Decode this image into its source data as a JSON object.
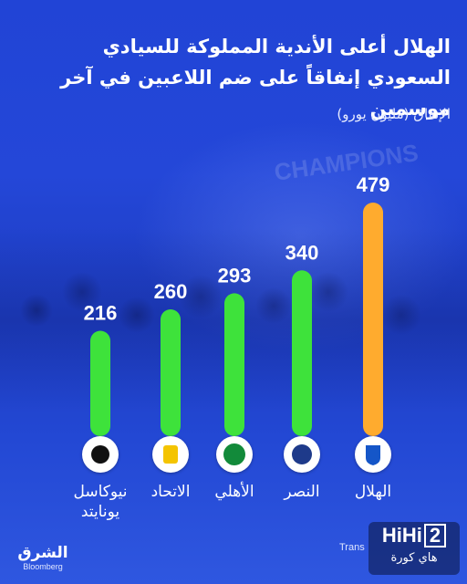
{
  "chart_data": {
    "type": "bar",
    "title": "الهلال أعلى الأندية المملوكة للسيادي السعودي إنفاقاً على ضم اللاعبين في آخر موسمين",
    "ylabel": "الإنفاق (مليون يورو)",
    "categories": [
      "نيوكاسل يونايتد",
      "الاتحاد",
      "الأهلي",
      "النصر",
      "الهلال"
    ],
    "values": [
      216,
      260,
      293,
      340,
      479
    ],
    "bar_colors": [
      "#3ee23b",
      "#3ee23b",
      "#3ee23b",
      "#3ee23b",
      "#ffab2e"
    ],
    "ylim": [
      0,
      500
    ],
    "grid": false,
    "legend": "none"
  },
  "background_word": "CHAMPIONS",
  "club_logos": [
    {
      "club": "نيوكاسل يونايتد",
      "icon": "newcastle-crest-icon",
      "color": "#111111"
    },
    {
      "club": "الاتحاد",
      "icon": "ittihad-crest-icon",
      "color": "#f4c400"
    },
    {
      "club": "الأهلي",
      "icon": "ahli-crest-icon",
      "color": "#128a3a"
    },
    {
      "club": "النصر",
      "icon": "nassr-crest-icon",
      "color": "#1e3a8a"
    },
    {
      "club": "الهلال",
      "icon": "hilal-crest-icon",
      "color": "#1556c8"
    }
  ],
  "brand": {
    "main": "الشرق",
    "sub": "Bloomberg"
  },
  "source_fragment": "Trans",
  "watermark": {
    "main": "HiHi",
    "digit": "2",
    "sub": "هاي كورة"
  }
}
